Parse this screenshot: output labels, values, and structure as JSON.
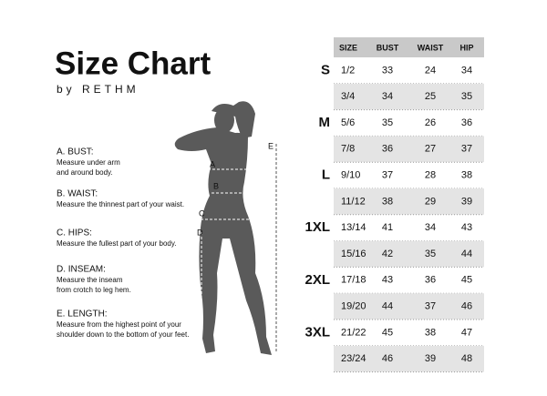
{
  "header": {
    "title": "Size Chart",
    "subtitle": "by RETHM"
  },
  "measurements": [
    {
      "label": "A. BUST:",
      "lines": [
        "Measure under arm",
        "and around body."
      ]
    },
    {
      "label": "B. WAIST:",
      "lines": [
        "Measure the thinnest part of your waist."
      ]
    },
    {
      "label": "C. HIPS:",
      "lines": [
        "Measure the fullest part of your body."
      ]
    },
    {
      "label": "D. INSEAM:",
      "lines": [
        "Measure the inseam",
        "from crotch to leg hem."
      ]
    },
    {
      "label": "E. LENGTH:",
      "lines": [
        "Measure from the highest point of your",
        "shoulder down to the bottom of your feet."
      ]
    }
  ],
  "figure": {
    "markers": [
      "A",
      "B",
      "C",
      "D",
      "E"
    ]
  },
  "table": {
    "columns": [
      "SIZE",
      "BUST",
      "WAIST",
      "HIP"
    ],
    "groups": [
      {
        "name": "S",
        "rows": [
          [
            "1/2",
            33,
            24,
            34
          ],
          [
            "3/4",
            34,
            25,
            35
          ]
        ]
      },
      {
        "name": "M",
        "rows": [
          [
            "5/6",
            35,
            26,
            36
          ],
          [
            "7/8",
            36,
            27,
            37
          ]
        ]
      },
      {
        "name": "L",
        "rows": [
          [
            "9/10",
            37,
            28,
            38
          ],
          [
            "11/12",
            38,
            29,
            39
          ]
        ]
      },
      {
        "name": "1XL",
        "rows": [
          [
            "13/14",
            41,
            34,
            43
          ],
          [
            "15/16",
            42,
            35,
            44
          ]
        ]
      },
      {
        "name": "2XL",
        "rows": [
          [
            "17/18",
            43,
            36,
            45
          ],
          [
            "19/20",
            44,
            37,
            46
          ]
        ]
      },
      {
        "name": "3XL",
        "rows": [
          [
            "21/22",
            45,
            38,
            47
          ],
          [
            "23/24",
            46,
            39,
            48
          ]
        ]
      }
    ]
  }
}
